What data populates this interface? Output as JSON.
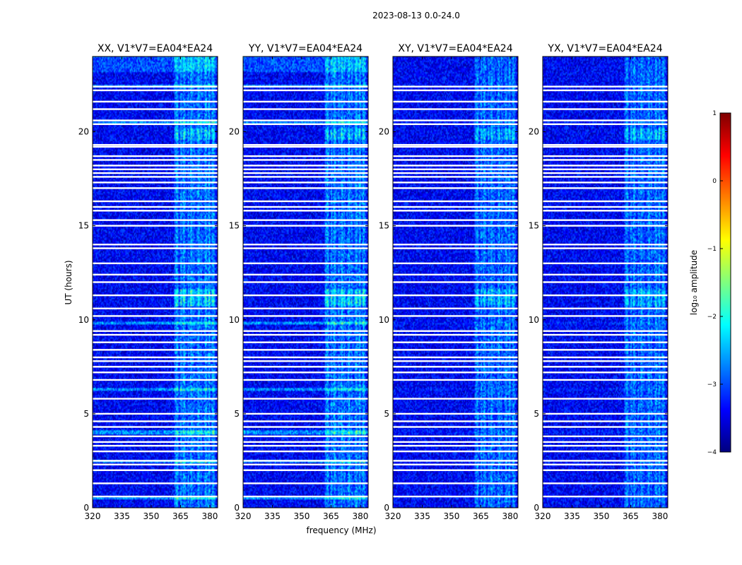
{
  "chart_data": {
    "type": "heatmap",
    "title": "2023-08-13 0.0-24.0",
    "xlabel": "frequency (MHz)",
    "ylabel": "UT (hours)",
    "xlim": [
      320,
      384
    ],
    "ylim": [
      0,
      24
    ],
    "xticks": [
      320,
      335,
      350,
      365,
      380
    ],
    "yticks": [
      0,
      5,
      10,
      15,
      20
    ],
    "colorbar": {
      "label": "log₁₀ amplitude",
      "range": [
        -4,
        1
      ],
      "ticks": [
        "−4",
        "−3",
        "−2",
        "−1",
        "0",
        "1"
      ],
      "colormap": "jet",
      "stops": [
        "#00007f",
        "#0000ff",
        "#007fff",
        "#00ffff",
        "#7fff7f",
        "#ffff00",
        "#ff7f00",
        "#ff0000",
        "#7f0000"
      ]
    },
    "panels": [
      {
        "title": "XX, V1*V7=EA04*EA24",
        "polarization": "XX"
      },
      {
        "title": "YY, V1*V7=EA04*EA24",
        "polarization": "YY"
      },
      {
        "title": "XY, V1*V7=EA04*EA24",
        "polarization": "XY"
      },
      {
        "title": "YX, V1*V7=EA04*EA24",
        "polarization": "YX"
      }
    ],
    "background_level": -3.4,
    "rfi_band_mhz": [
      362,
      383
    ],
    "rfi_level": -2.6,
    "flagged_hours": [
      0.6,
      1.3,
      2.0,
      2.3,
      2.5,
      3.0,
      3.3,
      3.5,
      3.8,
      4.3,
      4.6,
      5.0,
      5.8,
      6.8,
      7.2,
      7.5,
      7.8,
      8.0,
      8.4,
      8.8,
      9.2,
      9.4,
      10.2,
      10.6,
      11.3,
      12.0,
      12.4,
      13.0,
      13.8,
      14.0,
      15.0,
      15.3,
      15.8,
      16.0,
      16.3,
      17.0,
      17.3,
      17.6,
      17.8,
      18.0,
      18.2,
      18.5,
      18.7,
      19.2,
      19.3,
      20.4,
      20.6,
      21.2,
      21.6,
      22.2,
      22.4
    ],
    "bright_hours": [
      0.5,
      2.5,
      3.95,
      4.05,
      6.3,
      9.8,
      20.45,
      22.4
    ]
  }
}
